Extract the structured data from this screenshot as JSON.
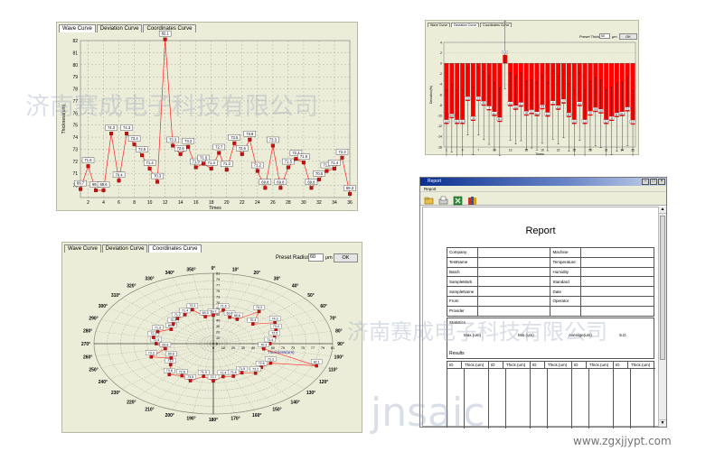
{
  "watermark": {
    "company": "济南赛成电子科技有限公司",
    "site": "jnsaic",
    "url": "www.zgxjjypt.com"
  },
  "wave_panel": {
    "tabs": [
      "Wave Curve",
      "Deviation Curve",
      "Coordinates Curve"
    ],
    "active_tab": 0
  },
  "deviation_panel": {
    "tabs": [
      "Wave Curve",
      "Deviation Curve",
      "Coordinates Curve"
    ],
    "active_tab": 1,
    "preset_label": "Preset Thick:",
    "preset_value": "60",
    "unit": "μm",
    "ok_label": "OK"
  },
  "polar_panel": {
    "tabs": [
      "Wave Curve",
      "Deviation Curve",
      "Coordinates Curve"
    ],
    "active_tab": 2,
    "preset_label": "Preset Radius:",
    "preset_value": "60",
    "unit": "μm",
    "ok_label": "OK"
  },
  "report_window": {
    "title": "Report",
    "menu": "Report",
    "heading": "Report",
    "info_rows": [
      [
        "Company",
        "Machine"
      ],
      [
        "TestName",
        "Temperature"
      ],
      [
        "Batch",
        "Humidity"
      ],
      [
        "SampleMark",
        "Standard"
      ],
      [
        "SampleName",
        "Date"
      ],
      [
        "From",
        "Operator"
      ],
      [
        "Provider",
        ""
      ]
    ],
    "statistics_label": "Statistics",
    "stats": [
      "Max.(um)",
      "Min.(um)",
      "Average(um)",
      "S.D."
    ],
    "results_label": "Results",
    "results_headers": [
      "ID",
      "Thick.(um)",
      "ID",
      "Thick.(um)",
      "ID",
      "Thick.(um)",
      "ID",
      "Thick.(um)",
      "ID",
      "Thick.(um)"
    ]
  },
  "chart_data": [
    {
      "type": "line",
      "title": "",
      "xlabel": "Times",
      "ylabel": "Thickness(um)",
      "ylim": [
        69,
        82
      ],
      "xlim": [
        1,
        36
      ],
      "x_ticks": [
        2,
        4,
        6,
        8,
        10,
        12,
        14,
        16,
        18,
        20,
        22,
        24,
        26,
        28,
        30,
        32,
        34,
        36
      ],
      "y_ticks": [
        70,
        71,
        72,
        73,
        74,
        75,
        76,
        77,
        78,
        79,
        80,
        81,
        82
      ],
      "grid": true,
      "color": "#ff2020",
      "x": [
        1,
        2,
        3,
        4,
        5,
        6,
        7,
        8,
        9,
        10,
        11,
        12,
        13,
        14,
        15,
        16,
        17,
        18,
        19,
        20,
        21,
        22,
        23,
        24,
        25,
        26,
        27,
        28,
        29,
        30,
        31,
        32,
        33,
        34,
        35,
        36
      ],
      "values": [
        69.7,
        71.6,
        69.6,
        69.6,
        74.3,
        70.4,
        74.3,
        73.4,
        72.5,
        71.4,
        70.3,
        82.1,
        73.3,
        72.6,
        73.2,
        71.5,
        71.8,
        71.4,
        72.7,
        71.3,
        73.5,
        72.6,
        73.8,
        71.2,
        69.8,
        73.3,
        69.8,
        71.5,
        72.2,
        71.9,
        69.8,
        70.5,
        71.2,
        71.4,
        72.3,
        69.3
      ],
      "labels": [
        "69.7",
        "71.6",
        "69.6",
        "69.6",
        "74.3",
        "70.4",
        "74.3",
        "73.4",
        "72.5",
        "71.4",
        "70.3",
        "82.1",
        "73.3",
        "72.6",
        "73.2",
        "71.5",
        "71.8",
        "71.4",
        "72.7",
        "71.3",
        "73.5",
        "72.6",
        "73.8",
        "71.2",
        "69.8",
        "73.3",
        "69.8",
        "71.5",
        "72.2",
        "71.9",
        "69.8",
        "70.5",
        "71.2",
        "71.4",
        "72.3",
        "69.3"
      ]
    },
    {
      "type": "bar",
      "title": "",
      "xlabel": "Times",
      "ylabel": "Deviation(%)",
      "ylim": [
        -16,
        4
      ],
      "y_ticks": [
        4,
        2,
        0,
        -2,
        -4,
        -6,
        -8,
        -10,
        -12,
        -14,
        -16
      ],
      "x_ticks": [
        1,
        4,
        7,
        10,
        13,
        16,
        19,
        22,
        25,
        28,
        31,
        34,
        36
      ],
      "color": "#ff0000",
      "grid": true,
      "x": [
        1,
        2,
        3,
        4,
        5,
        6,
        7,
        8,
        9,
        10,
        11,
        12,
        13,
        14,
        15,
        16,
        17,
        18,
        19,
        20,
        21,
        22,
        23,
        24,
        25,
        26,
        27,
        28,
        29,
        30,
        31,
        32,
        33,
        34,
        35,
        36
      ],
      "values": [
        -11.6,
        -10.5,
        -11.6,
        -11.6,
        -7.2,
        -11.0,
        -7.2,
        -8.1,
        -9.0,
        -10.1,
        -11.2,
        1.6,
        -8.2,
        -8.9,
        -8.3,
        -10.0,
        -9.7,
        -10.1,
        -8.8,
        -10.2,
        -8.0,
        -8.9,
        -7.7,
        -10.3,
        -11.6,
        -8.2,
        -11.6,
        -10.0,
        -9.3,
        -9.6,
        -11.6,
        -11.0,
        -10.3,
        -10.1,
        -9.2,
        -11.7
      ],
      "error": [
        6.5,
        6.5,
        6.5,
        6.5,
        6.5,
        6.5,
        6.5,
        6.5,
        6.5,
        6.5,
        6.5,
        6.5,
        6.5,
        6.5,
        6.5,
        6.5,
        6.5,
        6.5,
        6.5,
        6.5,
        6.5,
        6.5,
        6.5,
        6.5,
        6.5,
        6.5,
        6.5,
        6.5,
        6.5,
        6.5,
        6.5,
        6.5,
        6.5,
        6.5,
        6.5,
        6.5
      ]
    },
    {
      "type": "scatter",
      "title": "",
      "xlabel": "Thickness(um)",
      "polar": true,
      "r_ticks": [
        0,
        10,
        20,
        30,
        40,
        50,
        60,
        70,
        73,
        75,
        77,
        79,
        81
      ],
      "angle_labels": [
        "0°",
        "10°",
        "20°",
        "30°",
        "40°",
        "50°",
        "60°",
        "70°",
        "80°",
        "90°",
        "100°",
        "110°",
        "120°",
        "130°",
        "140°",
        "150°",
        "160°",
        "170°",
        "180°",
        "190°",
        "200°",
        "210°",
        "220°",
        "230°",
        "240°",
        "250°",
        "260°",
        "270°",
        "280°",
        "290°",
        "300°",
        "310°",
        "320°",
        "330°",
        "340°",
        "350°"
      ],
      "color": "#ff2020",
      "angles_deg": [
        0,
        10,
        20,
        30,
        40,
        50,
        60,
        70,
        80,
        90,
        100,
        110,
        120,
        130,
        140,
        150,
        160,
        170,
        180,
        190,
        200,
        210,
        220,
        230,
        240,
        250,
        260,
        270,
        280,
        290,
        300,
        310,
        320,
        330,
        340,
        350
      ],
      "values": [
        69.7,
        71.6,
        69.6,
        69.6,
        74.3,
        70.4,
        74.3,
        73.4,
        72.5,
        71.4,
        70.3,
        82.1,
        73.3,
        72.6,
        73.2,
        71.5,
        71.8,
        71.4,
        72.7,
        71.3,
        73.5,
        72.6,
        73.8,
        71.2,
        69.8,
        73.3,
        69.8,
        71.5,
        72.2,
        71.9,
        69.8,
        70.5,
        71.2,
        71.4,
        72.3,
        69.3
      ]
    }
  ]
}
